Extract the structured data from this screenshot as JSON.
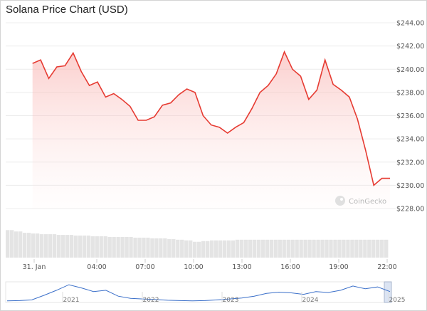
{
  "chart_data": {
    "type": "area",
    "title": "Solana Price Chart (USD)",
    "watermark": "CoinGecko",
    "y_unit": "USD",
    "ylim": [
      228,
      244
    ],
    "y_ticks": [
      "$228.00",
      "$230.00",
      "$232.00",
      "$234.00",
      "$236.00",
      "$238.00",
      "$240.00",
      "$242.00",
      "$244.00"
    ],
    "x_ticks": [
      "31. Jan",
      "04:00",
      "07:00",
      "10:00",
      "13:00",
      "16:00",
      "19:00",
      "22:00"
    ],
    "grid": true,
    "line_color": "#e63b32",
    "fill_color": "#fde0df",
    "series": [
      {
        "x": [
          "2025-01-31 00:00",
          "2025-01-31 00:30",
          "2025-01-31 01:00",
          "2025-01-31 01:30",
          "2025-01-31 02:00",
          "2025-01-31 02:30",
          "2025-01-31 03:00",
          "2025-01-31 03:30",
          "2025-01-31 04:00",
          "2025-01-31 04:30",
          "2025-01-31 05:00",
          "2025-01-31 05:30",
          "2025-01-31 06:00",
          "2025-01-31 06:30",
          "2025-01-31 07:00",
          "2025-01-31 07:30",
          "2025-01-31 08:00",
          "2025-01-31 08:30",
          "2025-01-31 09:00",
          "2025-01-31 09:30",
          "2025-01-31 10:00",
          "2025-01-31 10:30",
          "2025-01-31 11:00",
          "2025-01-31 11:30",
          "2025-01-31 12:00",
          "2025-01-31 12:30",
          "2025-01-31 13:00",
          "2025-01-31 13:30",
          "2025-01-31 14:00",
          "2025-01-31 14:30",
          "2025-01-31 15:00",
          "2025-01-31 15:30",
          "2025-01-31 16:00",
          "2025-01-31 16:30",
          "2025-01-31 17:00",
          "2025-01-31 17:30",
          "2025-01-31 18:00",
          "2025-01-31 18:30",
          "2025-01-31 19:00",
          "2025-01-31 19:30",
          "2025-01-31 20:00",
          "2025-01-31 20:30",
          "2025-01-31 21:00",
          "2025-01-31 21:30",
          "2025-01-31 22:00"
        ],
        "values": [
          240.5,
          240.8,
          239.2,
          240.2,
          240.3,
          241.4,
          239.8,
          238.6,
          238.9,
          237.6,
          237.9,
          237.4,
          236.8,
          235.6,
          235.6,
          235.9,
          236.9,
          237.1,
          237.8,
          238.3,
          238.0,
          236.0,
          235.2,
          235.0,
          234.5,
          235.0,
          235.4,
          236.6,
          238.0,
          238.6,
          239.6,
          241.5,
          240.0,
          239.4,
          237.4,
          238.2,
          240.8,
          238.7,
          238.2,
          237.6,
          235.7,
          233.0,
          230.0,
          230.6,
          230.6
        ]
      }
    ],
    "volume_note": "relative daily volume bars under chart",
    "volume": [
      0.4,
      0.38,
      0.36,
      0.35,
      0.34,
      0.34,
      0.33,
      0.33,
      0.32,
      0.32,
      0.31,
      0.31,
      0.3,
      0.3,
      0.3,
      0.29,
      0.29,
      0.28,
      0.28,
      0.27,
      0.26,
      0.25,
      0.23,
      0.24,
      0.25,
      0.25,
      0.25,
      0.26,
      0.26,
      0.26,
      0.26,
      0.26,
      0.26,
      0.26,
      0.26,
      0.26,
      0.26,
      0.26,
      0.26,
      0.26,
      0.26,
      0.26,
      0.26,
      0.26,
      0.26
    ],
    "navigator": {
      "x_ticks": [
        "2021",
        "2022",
        "2023",
        "2024",
        "2025"
      ],
      "values": [
        0.05,
        0.06,
        0.1,
        0.35,
        0.62,
        0.92,
        0.75,
        0.55,
        0.62,
        0.3,
        0.18,
        0.15,
        0.12,
        0.08,
        0.06,
        0.05,
        0.06,
        0.1,
        0.15,
        0.2,
        0.3,
        0.45,
        0.52,
        0.48,
        0.4,
        0.55,
        0.5,
        0.62,
        0.85,
        0.7,
        0.8,
        0.55
      ]
    }
  }
}
